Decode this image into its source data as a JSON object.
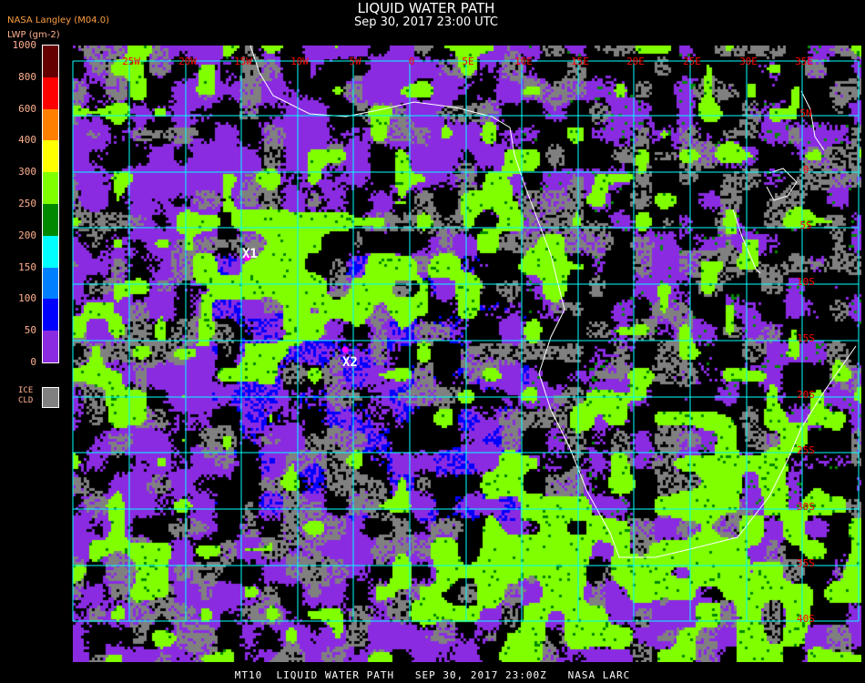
{
  "header": {
    "title": "LIQUID WATER PATH",
    "datetime": "Sep 30, 2017 23:00 UTC",
    "source": "NASA Langley (M04.0)",
    "units": "LWP (gm-2)"
  },
  "legend": {
    "ticks": [
      "1000",
      "800",
      "600",
      "400",
      "300",
      "250",
      "200",
      "150",
      "100",
      "50",
      "0"
    ],
    "colors": [
      "#640000",
      "#ff0000",
      "#ff8000",
      "#ffff00",
      "#80ff00",
      "#008800",
      "#00ffff",
      "#0080ff",
      "#0000ff",
      "#8a2be2"
    ],
    "ice_label_1": "ICE",
    "ice_label_2": "CLD",
    "ice_color": "#808080"
  },
  "map": {
    "lon_labels": [
      "25W",
      "20W",
      "15W",
      "10W",
      "5W",
      "0",
      "5E",
      "10E",
      "15E",
      "20E",
      "25E",
      "30E",
      "35E"
    ],
    "lat_labels": [
      "5N",
      "0",
      "5S",
      "10S",
      "15S",
      "20S",
      "25S",
      "30S",
      "35S",
      "40S"
    ],
    "grid_color": "#00ffff",
    "label_color": "#ff0000",
    "markers": [
      {
        "label": "X1"
      },
      {
        "label": "X2"
      }
    ],
    "marker_color": "#ff00ff"
  },
  "footer": {
    "text": "MT10  LIQUID WATER PATH   SEP 30, 2017 23:00Z   NASA LARC"
  }
}
